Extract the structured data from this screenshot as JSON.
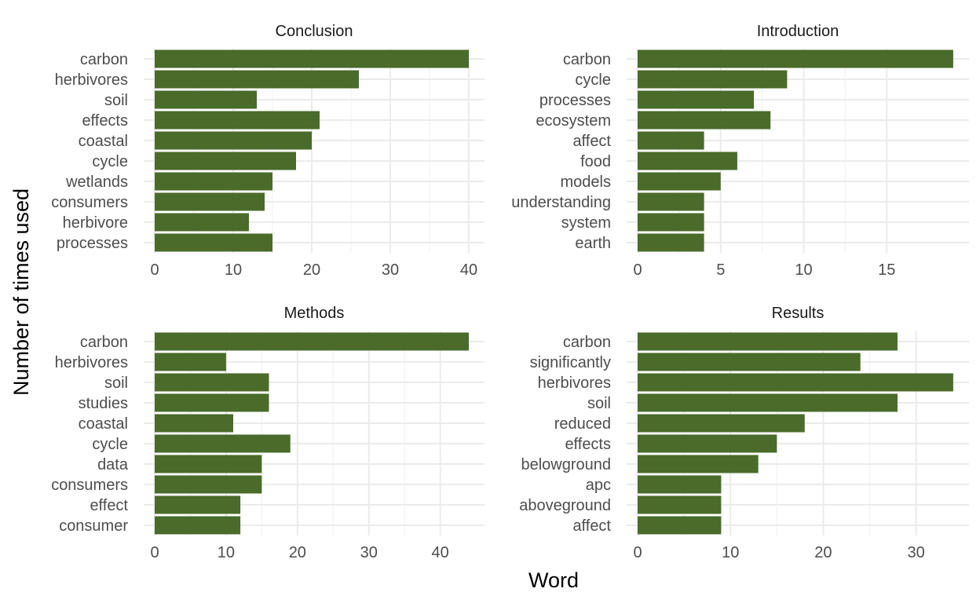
{
  "chart_data": {
    "type": "bar",
    "orientation": "horizontal",
    "xlabel": "Word",
    "ylabel": "Number of times used",
    "bar_color": "#4a6b2a",
    "grid": true,
    "facets": [
      {
        "title": "Conclusion",
        "categories": [
          "carbon",
          "herbivores",
          "soil",
          "effects",
          "coastal",
          "cycle",
          "wetlands",
          "consumers",
          "herbivore",
          "processes"
        ],
        "values": [
          40,
          26,
          13,
          21,
          20,
          18,
          15,
          14,
          12,
          15
        ],
        "xlim": [
          0,
          42
        ],
        "ticks": [
          0,
          10,
          20,
          30,
          40
        ]
      },
      {
        "title": "Introduction",
        "categories": [
          "carbon",
          "cycle",
          "processes",
          "ecosystem",
          "affect",
          "food",
          "models",
          "understanding",
          "system",
          "earth"
        ],
        "values": [
          19,
          9,
          7,
          8,
          4,
          6,
          5,
          4,
          4,
          4
        ],
        "xlim": [
          0,
          19.95
        ],
        "ticks": [
          0,
          5,
          10,
          15
        ]
      },
      {
        "title": "Methods",
        "categories": [
          "carbon",
          "herbivores",
          "soil",
          "studies",
          "coastal",
          "cycle",
          "data",
          "consumers",
          "effect",
          "consumer"
        ],
        "values": [
          44,
          10,
          16,
          16,
          11,
          19,
          15,
          15,
          12,
          12
        ],
        "xlim": [
          0,
          46.2
        ],
        "ticks": [
          0,
          10,
          20,
          30,
          40
        ]
      },
      {
        "title": "Results",
        "categories": [
          "carbon",
          "significantly",
          "herbivores",
          "soil",
          "reduced",
          "effects",
          "belowground",
          "apc",
          "aboveground",
          "affect"
        ],
        "values": [
          28,
          24,
          34,
          28,
          18,
          15,
          13,
          9,
          9,
          9
        ],
        "xlim": [
          0,
          35.7
        ],
        "ticks": [
          0,
          10,
          20,
          30
        ]
      }
    ]
  }
}
